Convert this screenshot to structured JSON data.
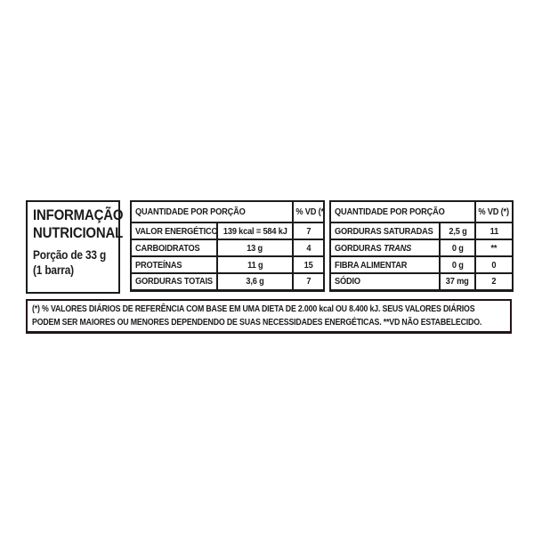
{
  "panel": {
    "title_line1": "INFORMAÇÃO",
    "title_line2": "NUTRICIONAL",
    "portion_line1": "Porção de 33 g",
    "portion_line2": "(1 barra)"
  },
  "left_table": {
    "header": {
      "quantity": "QUANTIDADE POR PORÇÃO",
      "vd": "% VD (*)"
    },
    "rows": [
      {
        "label": "VALOR ENERGÉTICO",
        "value": "139 kcal = 584 kJ",
        "vd": "7"
      },
      {
        "label": "CARBOIDRATOS",
        "value": "13 g",
        "vd": "4"
      },
      {
        "label": "PROTEÍNAS",
        "value": "11 g",
        "vd": "15"
      },
      {
        "label": "GORDURAS TOTAIS",
        "value": "3,6 g",
        "vd": "7"
      }
    ]
  },
  "right_table": {
    "header": {
      "quantity": "QUANTIDADE POR PORÇÃO",
      "vd": "% VD (*)"
    },
    "rows": [
      {
        "label": "GORDURAS SATURADAS",
        "label_italic": "",
        "value": "2,5 g",
        "vd": "11"
      },
      {
        "label": "GORDURAS",
        "label_italic": "TRANS",
        "value": "0 g",
        "vd": "**"
      },
      {
        "label": "FIBRA ALIMENTAR",
        "label_italic": "",
        "value": "0 g",
        "vd": "0"
      },
      {
        "label": "SÓDIO",
        "label_italic": "",
        "value": "37 mg",
        "vd": "2"
      }
    ]
  },
  "footnote": {
    "line1": "(*) % VALORES DIÁRIOS DE REFERÊNCIA COM BASE EM UMA DIETA DE 2.000 kcal OU 8.400 kJ. SEUS VALORES DIÁRIOS",
    "line2": "PODEM SER MAIORES OU MENORES DEPENDENDO DE SUAS NECESSIDADES ENERGÉTICAS.  **VD NÃO ESTABELECIDO."
  },
  "colors": {
    "text": "#1b1b1b",
    "border": "#1b1b1b",
    "background": "#ffffff"
  }
}
